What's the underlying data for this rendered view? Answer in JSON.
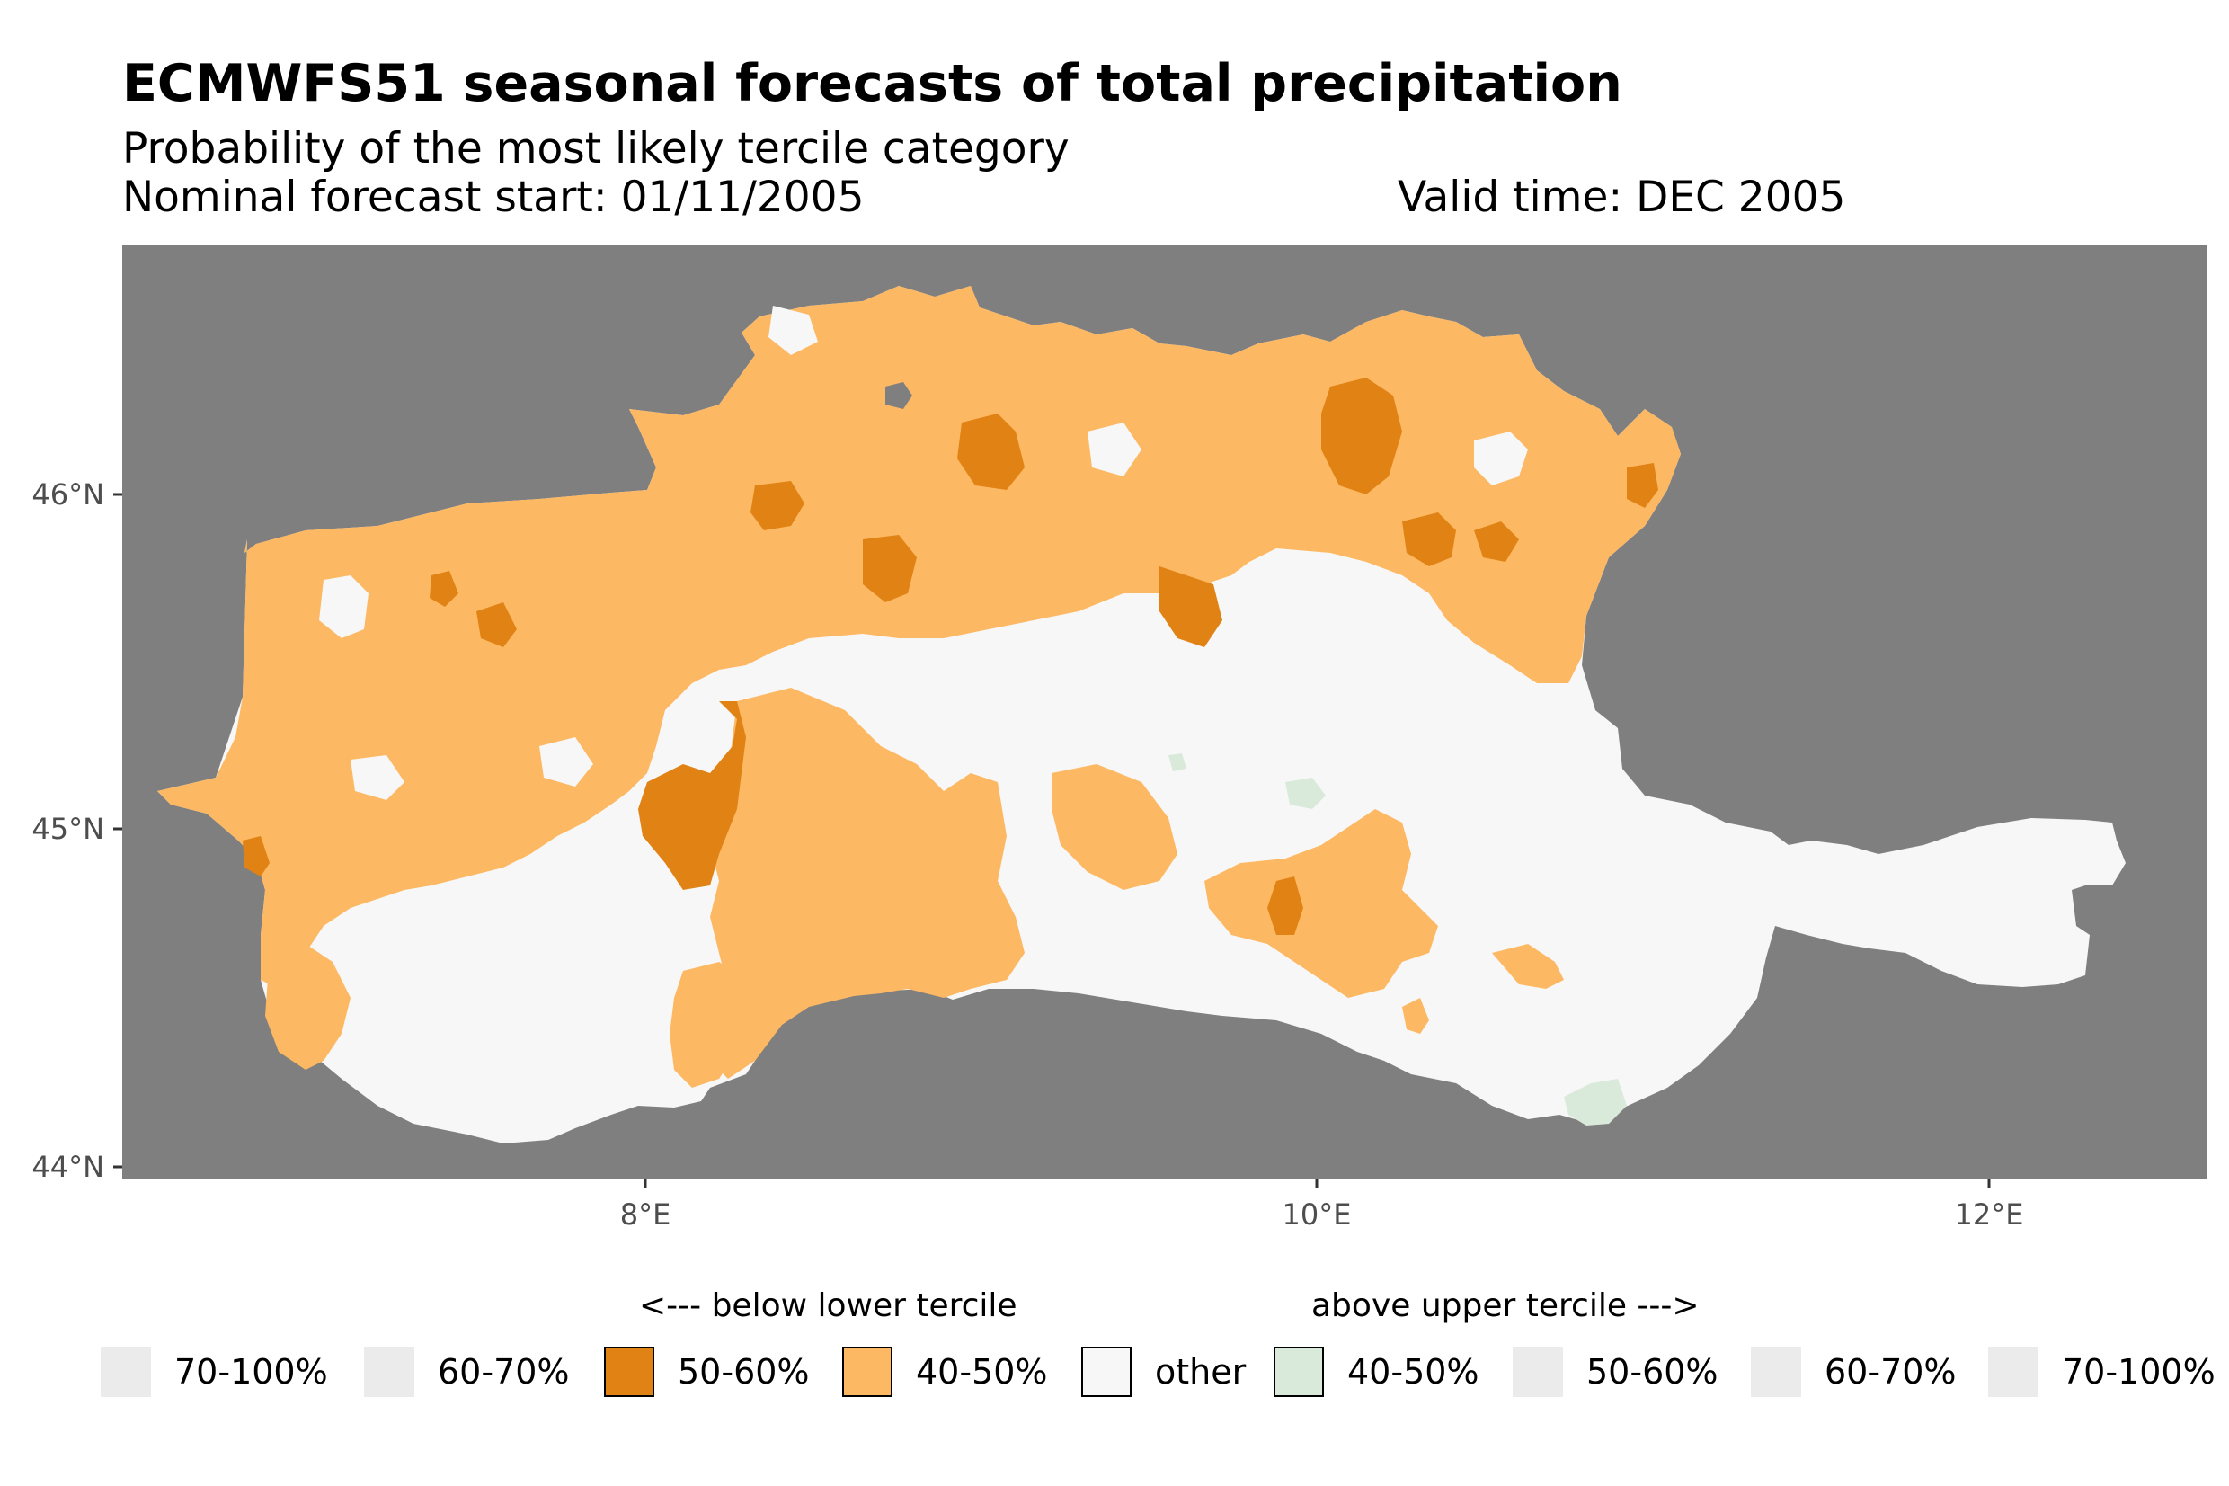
{
  "title": "ECMWFS51 seasonal forecasts of total precipitation",
  "subtitle": "Probability of the most likely tercile category",
  "forecast_start": "Nominal forecast start: 01/11/2005",
  "valid_time": "Valid time: DEC 2005",
  "axes": {
    "lat_ticks": [
      {
        "value": 44,
        "label": "44°N"
      },
      {
        "value": 45,
        "label": "45°N"
      },
      {
        "value": 46,
        "label": "46°N"
      }
    ],
    "lon_ticks": [
      {
        "value": 8,
        "label": "8°E"
      },
      {
        "value": 10,
        "label": "10°E"
      },
      {
        "value": 12,
        "label": "12°E"
      }
    ]
  },
  "colors": {
    "background_ocean": "#7f7f7f",
    "below_70_100": "#e8e8e8",
    "below_60_70": "#e8e8e8",
    "below_50_60": "#e08214",
    "below_40_50": "#fdb863",
    "other": "#f7f7f7",
    "above_40_50": "#d9eadb",
    "above_50_60": "#e8e8e8",
    "above_60_70": "#e8e8e8",
    "above_70_100": "#e8e8e8"
  },
  "legend": {
    "below_heading": "<--- below lower tercile",
    "above_heading": "above upper tercile --->",
    "items": [
      {
        "label": "70-100%",
        "color": "#ebebeb",
        "border": false
      },
      {
        "label": "60-70%",
        "color": "#ebebeb",
        "border": false
      },
      {
        "label": "50-60%",
        "color": "#e08214",
        "border": true
      },
      {
        "label": "40-50%",
        "color": "#fdb863",
        "border": true
      },
      {
        "label": "other",
        "color": "#f7f7f7",
        "border": true
      },
      {
        "label": "40-50%",
        "color": "#d9eadb",
        "border": true
      },
      {
        "label": "50-60%",
        "color": "#ebebeb",
        "border": false
      },
      {
        "label": "60-70%",
        "color": "#ebebeb",
        "border": false
      },
      {
        "label": "70-100%",
        "color": "#ebebeb",
        "border": false
      }
    ]
  }
}
